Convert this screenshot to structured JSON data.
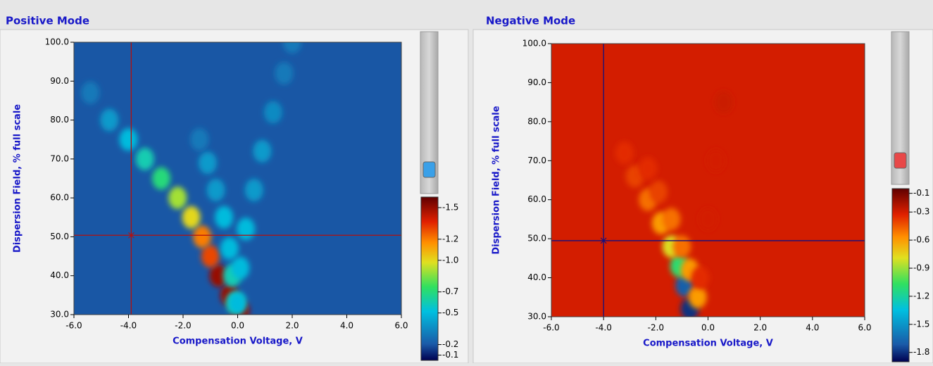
{
  "chart_data": [
    {
      "type": "heatmap",
      "title": "Positive Mode",
      "x_label": "Compensation Voltage, V",
      "y_label": "Dispersion Field, % full scale",
      "xlim": [
        -6,
        6
      ],
      "xticks": [
        {
          "value": -6,
          "label": "-6.0"
        },
        {
          "value": -4,
          "label": "-4.0"
        },
        {
          "value": -2,
          "label": "-2.0"
        },
        {
          "value": 0,
          "label": "0.0"
        },
        {
          "value": 2,
          "label": "2.0"
        },
        {
          "value": 4,
          "label": "4.0"
        },
        {
          "value": 6,
          "label": "6.0"
        }
      ],
      "ylim": [
        30,
        100
      ],
      "yticks": [
        {
          "value": 30,
          "label": "30.0"
        },
        {
          "value": 40,
          "label": "40.0"
        },
        {
          "value": 50,
          "label": "50.0"
        },
        {
          "value": 60,
          "label": "60.0"
        },
        {
          "value": 70,
          "label": "70.0"
        },
        {
          "value": 80,
          "label": "80.0"
        },
        {
          "value": 90,
          "label": "90.0"
        },
        {
          "value": 100,
          "label": "100.0"
        }
      ],
      "clim": [
        -0.05,
        -1.6
      ],
      "cticks": [
        -1.5,
        -1.2,
        {
          "value": -1,
          "label": "-1.0"
        },
        -0.7,
        -0.5,
        -0.2,
        -0.1
      ],
      "background": -0.2,
      "cursor": {
        "x": -3.9,
        "y": 50.4,
        "color": "#b01010"
      },
      "knob_color": "#3aa0e8",
      "ridges": [
        {
          "x": [
            0.1,
            -0.3,
            -0.7,
            -1.0,
            -1.3,
            -1.7,
            -2.2,
            -2.8,
            -3.4,
            -4.0,
            -4.7,
            -5.4
          ],
          "y": [
            31,
            35,
            40,
            45,
            50,
            55,
            60,
            65,
            70,
            75,
            80,
            87
          ],
          "intensity": [
            -1.5,
            -1.5,
            -1.5,
            -1.3,
            -1.2,
            -1.0,
            -0.9,
            -0.7,
            -0.6,
            -0.5,
            -0.4,
            -0.3
          ]
        },
        {
          "x": [
            -0.1,
            -0.2,
            -0.3,
            -0.5,
            -0.8,
            -1.1,
            -1.4
          ],
          "y": [
            33,
            40,
            47,
            55,
            62,
            69,
            75
          ],
          "intensity": [
            -0.6,
            -0.6,
            -0.5,
            -0.5,
            -0.4,
            -0.4,
            -0.3
          ]
        },
        {
          "x": [
            0.0,
            0.1,
            0.3,
            0.6,
            0.9,
            1.3,
            1.7,
            2.0
          ],
          "y": [
            33,
            42,
            52,
            62,
            72,
            82,
            92,
            100
          ],
          "intensity": [
            -0.5,
            -0.5,
            -0.5,
            -0.4,
            -0.4,
            -0.35,
            -0.3,
            -0.3
          ]
        }
      ]
    },
    {
      "type": "heatmap",
      "title": "Negative Mode",
      "x_label": "Compensation Voltage, V",
      "y_label": "Dispersion Field, % full scale",
      "xlim": [
        -6,
        6
      ],
      "xticks": [
        {
          "value": -6,
          "label": "-6.0"
        },
        {
          "value": -4,
          "label": "-4.0"
        },
        {
          "value": -2,
          "label": "-2.0"
        },
        {
          "value": 0,
          "label": "0.0"
        },
        {
          "value": 2,
          "label": "2.0"
        },
        {
          "value": 4,
          "label": "4.0"
        },
        {
          "value": 6,
          "label": "6.0"
        }
      ],
      "ylim": [
        30,
        100
      ],
      "yticks": [
        {
          "value": 30,
          "label": "30.0"
        },
        {
          "value": 40,
          "label": "40.0"
        },
        {
          "value": 50,
          "label": "50.0"
        },
        {
          "value": 60,
          "label": "60.0"
        },
        {
          "value": 70,
          "label": "70.0"
        },
        {
          "value": 80,
          "label": "80.0"
        },
        {
          "value": 90,
          "label": "90.0"
        },
        {
          "value": 100,
          "label": "100.0"
        }
      ],
      "clim": [
        -1.9,
        -0.05
      ],
      "cticks": [
        -0.1,
        -0.3,
        -0.6,
        -0.9,
        -1.2,
        -1.5,
        -1.8
      ],
      "background": -0.3,
      "cursor": {
        "x": -4.0,
        "y": 49.5,
        "color": "#101080"
      },
      "knob_color": "#e84848",
      "ridges": [
        {
          "x": [
            -0.7,
            -0.9,
            -1.1,
            -1.4,
            -1.8,
            -2.3,
            -2.8,
            -3.2
          ],
          "y": [
            32,
            38,
            43,
            48,
            54,
            60,
            66,
            72
          ],
          "intensity": [
            -1.8,
            -1.7,
            -1.1,
            -0.8,
            -0.6,
            -0.5,
            -0.4,
            -0.35
          ]
        },
        {
          "x": [
            -0.4,
            -0.7,
            -1.0,
            -1.4,
            -1.9,
            -2.3
          ],
          "y": [
            35,
            42,
            48,
            55,
            62,
            68
          ],
          "intensity": [
            -0.6,
            -0.6,
            -0.5,
            -0.5,
            -0.4,
            -0.35
          ]
        },
        {
          "x": [
            -0.3,
            0.0,
            0.3,
            0.6
          ],
          "y": [
            40,
            55,
            70,
            85
          ],
          "intensity": [
            -0.35,
            -0.3,
            -0.3,
            -0.28
          ]
        }
      ]
    }
  ]
}
